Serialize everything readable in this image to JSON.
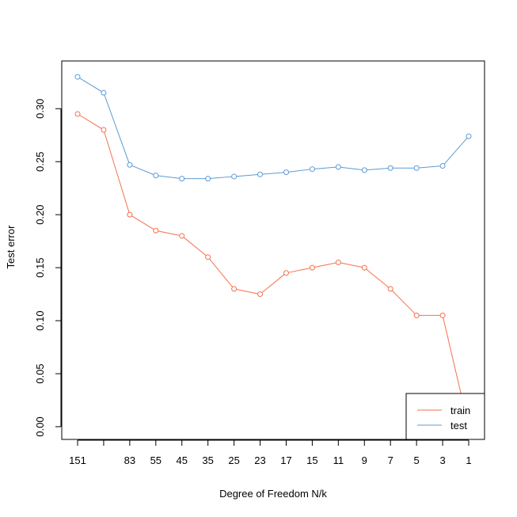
{
  "chart_data": {
    "type": "line",
    "xlabel": "Degree of Freedom N/k",
    "ylabel": "Test error",
    "x_tick_labels": [
      "151",
      "",
      "83",
      "55",
      "45",
      "35",
      "25",
      "23",
      "17",
      "15",
      "11",
      "9",
      "7",
      "5",
      "3",
      "1"
    ],
    "y_ticks": [
      "0.00",
      "0.05",
      "0.10",
      "0.15",
      "0.20",
      "0.25",
      "0.30"
    ],
    "ylim": [
      -0.012,
      0.345
    ],
    "series": [
      {
        "name": "train",
        "color": "#f4714d",
        "values": [
          0.295,
          0.28,
          0.2,
          0.185,
          0.18,
          0.16,
          0.13,
          0.125,
          0.145,
          0.15,
          0.155,
          0.15,
          0.13,
          0.105,
          0.105,
          0.0
        ]
      },
      {
        "name": "test",
        "color": "#5b9bd5",
        "values": [
          0.33,
          0.315,
          0.247,
          0.237,
          0.234,
          0.234,
          0.236,
          0.238,
          0.24,
          0.243,
          0.245,
          0.242,
          0.244,
          0.244,
          0.246,
          0.274
        ]
      }
    ],
    "legend_position": "bottom-right",
    "grid": false
  }
}
